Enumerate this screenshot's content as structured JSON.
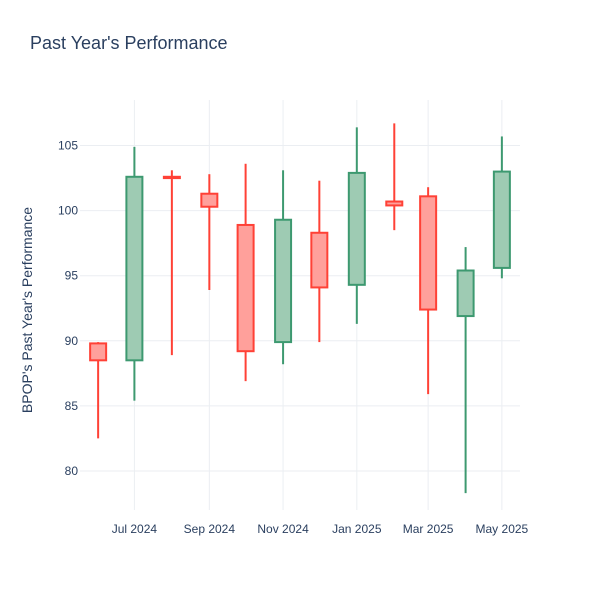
{
  "chart_data": {
    "type": "candlestick",
    "title": "Past Year's Performance",
    "ylabel": "BPOP's Past Year's Performance",
    "xlabel": "",
    "ylim": [
      77,
      108.5
    ],
    "grid": true,
    "legend": "none",
    "colors": {
      "increasing_line": "#3d9970",
      "increasing_fill": "#9ecbb3",
      "decreasing_line": "#ff4136",
      "decreasing_fill": "#ffa09b",
      "grid": "#ebeef2",
      "text": "#2a3f5f"
    },
    "x_ticks": [
      {
        "label": "Jul 2024",
        "date": "2024-07-01"
      },
      {
        "label": "Sep 2024",
        "date": "2024-09-01"
      },
      {
        "label": "Nov 2024",
        "date": "2024-11-01"
      },
      {
        "label": "Jan 2025",
        "date": "2025-01-01"
      },
      {
        "label": "Mar 2025",
        "date": "2025-03-01"
      },
      {
        "label": "May 2025",
        "date": "2025-05-01"
      }
    ],
    "y_ticks": [
      80,
      85,
      90,
      95,
      100,
      105
    ],
    "x_range": [
      "2024-05-17",
      "2025-05-16"
    ],
    "candles": [
      {
        "date": "2024-06-01",
        "open": 89.8,
        "high": 89.9,
        "low": 82.5,
        "close": 88.5
      },
      {
        "date": "2024-07-01",
        "open": 88.5,
        "high": 104.9,
        "low": 85.4,
        "close": 102.6
      },
      {
        "date": "2024-08-01",
        "open": 102.6,
        "high": 103.1,
        "low": 88.9,
        "close": 102.5
      },
      {
        "date": "2024-09-01",
        "open": 101.3,
        "high": 102.8,
        "low": 93.9,
        "close": 100.3
      },
      {
        "date": "2024-10-01",
        "open": 98.9,
        "high": 103.6,
        "low": 86.9,
        "close": 89.2
      },
      {
        "date": "2024-11-01",
        "open": 89.9,
        "high": 103.1,
        "low": 88.2,
        "close": 99.3
      },
      {
        "date": "2024-12-01",
        "open": 98.3,
        "high": 102.3,
        "low": 89.9,
        "close": 94.1
      },
      {
        "date": "2025-01-01",
        "open": 94.3,
        "high": 106.4,
        "low": 91.3,
        "close": 102.9
      },
      {
        "date": "2025-02-01",
        "open": 100.7,
        "high": 106.7,
        "low": 98.5,
        "close": 100.4
      },
      {
        "date": "2025-03-01",
        "open": 101.1,
        "high": 101.8,
        "low": 85.9,
        "close": 92.4
      },
      {
        "date": "2025-04-01",
        "open": 91.9,
        "high": 97.2,
        "low": 78.3,
        "close": 95.4
      },
      {
        "date": "2025-05-01",
        "open": 95.6,
        "high": 105.7,
        "low": 94.8,
        "close": 103.0
      }
    ]
  }
}
